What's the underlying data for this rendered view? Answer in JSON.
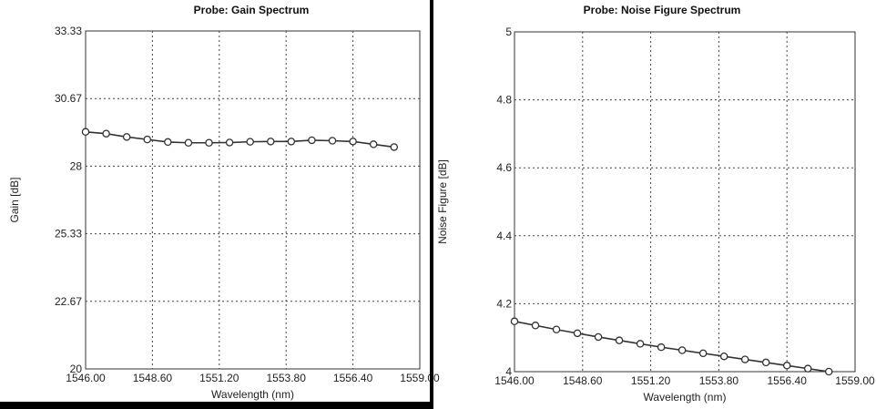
{
  "chart_data": [
    {
      "type": "line",
      "title": "Probe: Gain Spectrum",
      "xlabel": "Wavelength (nm)",
      "ylabel": "Gain [dB]",
      "xlim": [
        1546.0,
        1559.0
      ],
      "ylim": [
        20,
        33.33
      ],
      "xticks": [
        "1546.00",
        "1548.60",
        "1551.20",
        "1553.80",
        "1556.40",
        "1559.00"
      ],
      "yticks": [
        "20",
        "22.67",
        "25.33",
        "28",
        "30.67",
        "33.33"
      ],
      "grid": true,
      "marker": "circle",
      "x": [
        1546.0,
        1546.8,
        1547.6,
        1548.4,
        1549.2,
        1550.0,
        1550.8,
        1551.6,
        1552.4,
        1553.2,
        1554.0,
        1554.8,
        1555.6,
        1556.4,
        1557.2,
        1558.0
      ],
      "values": [
        29.35,
        29.28,
        29.15,
        29.05,
        28.95,
        28.92,
        28.92,
        28.93,
        28.96,
        28.97,
        28.97,
        29.02,
        29.0,
        28.97,
        28.86,
        28.75
      ]
    },
    {
      "type": "line",
      "title": "Probe: Noise Figure Spectrum",
      "xlabel": "Wavelength (nm)",
      "ylabel": "Noise Figure [dB]",
      "xlim": [
        1546.0,
        1559.0
      ],
      "ylim": [
        4,
        5
      ],
      "xticks": [
        "1546.00",
        "1548.60",
        "1551.20",
        "1553.80",
        "1556.40",
        "1559.00"
      ],
      "yticks": [
        "4",
        "4.2",
        "4.4",
        "4.6",
        "4.8",
        "5"
      ],
      "grid": true,
      "marker": "circle",
      "x": [
        1546.0,
        1546.8,
        1547.6,
        1548.4,
        1549.2,
        1550.0,
        1550.8,
        1551.6,
        1552.4,
        1553.2,
        1554.0,
        1554.8,
        1555.6,
        1556.4,
        1557.2,
        1558.0
      ],
      "values": [
        4.148,
        4.136,
        4.124,
        4.113,
        4.102,
        4.092,
        4.082,
        4.072,
        4.063,
        4.054,
        4.045,
        4.036,
        4.027,
        4.018,
        4.009,
        4.0
      ]
    }
  ]
}
